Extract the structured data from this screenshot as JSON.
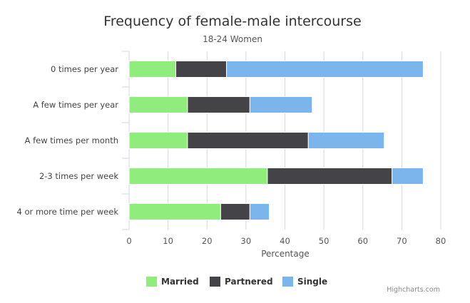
{
  "chart_data": {
    "type": "bar",
    "orientation": "horizontal",
    "stacked": true,
    "title": "Frequency of female-male intercourse",
    "subtitle": "18-24 Women",
    "categories": [
      "0 times per year",
      "A few times per year",
      "A few times per month",
      "2-3 times per week",
      "4 or more time per week"
    ],
    "series": [
      {
        "name": "Married",
        "color": "#90ed7d",
        "values": [
          12,
          15,
          15,
          35.5,
          23.5
        ]
      },
      {
        "name": "Partnered",
        "color": "#434348",
        "values": [
          13,
          16,
          31,
          32,
          7.5
        ]
      },
      {
        "name": "Single",
        "color": "#7cb5ec",
        "values": [
          50.5,
          16,
          19.5,
          8,
          5
        ]
      }
    ],
    "xlabel": "Percentage",
    "ylabel": "",
    "xlim": [
      0,
      80
    ],
    "xticks": [
      "0",
      "10",
      "20",
      "30",
      "40",
      "50",
      "60",
      "70",
      "80"
    ],
    "grid": true,
    "legend_position": "bottom"
  },
  "credits": "Highcharts.com"
}
